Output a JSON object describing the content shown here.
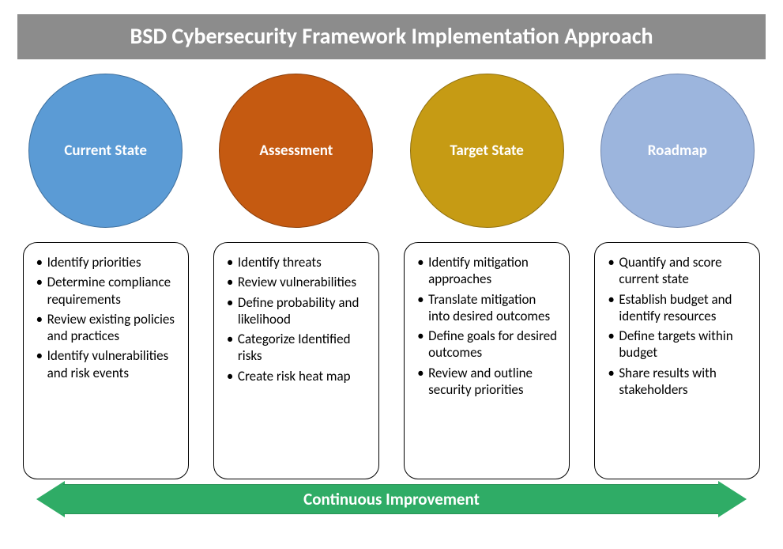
{
  "title": "BSD Cybersecurity Framework Implementation Approach",
  "title_bg": "#8c8c8c",
  "arrow_label": "Continuous Improvement",
  "arrow_color": "#2fac66",
  "columns": [
    {
      "label": "Current State",
      "circle_fill": "#5b9bd5",
      "circle_border": "#3d6e9c",
      "bullets": [
        "Identify priorities",
        "Determine compliance requirements",
        "Review existing policies and practices",
        "Identify vulnerabilities and risk events"
      ]
    },
    {
      "label": "Assessment",
      "circle_fill": "#c55a11",
      "circle_border": "#8a3e0b",
      "bullets": [
        "Identify threats",
        "Review vulnerabilities",
        "Define probability and likelihood",
        "Categorize Identified risks",
        "Create risk heat map"
      ]
    },
    {
      "label": "Target State",
      "circle_fill": "#c69b14",
      "circle_border": "#8f6f0e",
      "bullets": [
        "Identify mitigation approaches",
        "Translate mitigation into desired outcomes",
        "Define goals for desired outcomes",
        "Review and outline security priorities"
      ]
    },
    {
      "label": "Roadmap",
      "circle_fill": "#9cb5dd",
      "circle_border": "#6e85ad",
      "bullets": [
        "Quantify and score current state",
        "Establish budget and identify resources",
        "Define targets within budget",
        "Share results with stakeholders"
      ]
    }
  ]
}
